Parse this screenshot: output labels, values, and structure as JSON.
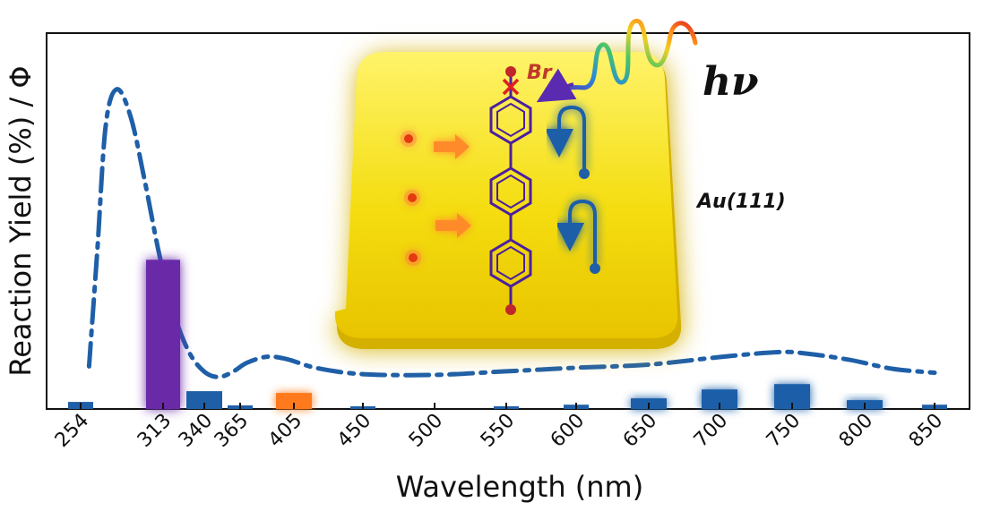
{
  "chart_data": {
    "type": "bar",
    "xlabel": "Wavelength (nm)",
    "ylabel": "Reaction Yield (%) / Φ",
    "x_ticks": [
      254,
      313,
      340,
      365,
      405,
      450,
      500,
      550,
      600,
      650,
      700,
      750,
      800,
      850
    ],
    "series": [
      {
        "values": [
          {
            "x": 254,
            "y": 2
          },
          {
            "x": 313,
            "y": 42,
            "color": "#6a2aa8",
            "glow": true
          },
          {
            "x": 340,
            "y": 5
          },
          {
            "x": 365,
            "y": 1
          },
          {
            "x": 405,
            "y": 4.5,
            "color": "#ff7a1a",
            "glow": true
          },
          {
            "x": 450,
            "y": 0.3
          },
          {
            "x": 550,
            "y": 0.3
          },
          {
            "x": 600,
            "y": 1.2
          },
          {
            "x": 650,
            "y": 3,
            "glow": true
          },
          {
            "x": 700,
            "y": 5.5,
            "glow": true
          },
          {
            "x": 750,
            "y": 7,
            "glow": true
          },
          {
            "x": 800,
            "y": 2.5,
            "glow": true
          },
          {
            "x": 850,
            "y": 1.2
          }
        ]
      },
      {
        "type": "line",
        "style": "dash-dot",
        "values": [
          {
            "x": 260,
            "y": 12
          },
          {
            "x": 266,
            "y": 45
          },
          {
            "x": 272,
            "y": 80
          },
          {
            "x": 280,
            "y": 90
          },
          {
            "x": 290,
            "y": 82
          },
          {
            "x": 300,
            "y": 64
          },
          {
            "x": 310,
            "y": 44
          },
          {
            "x": 320,
            "y": 27
          },
          {
            "x": 330,
            "y": 16
          },
          {
            "x": 340,
            "y": 10.5
          },
          {
            "x": 350,
            "y": 9
          },
          {
            "x": 360,
            "y": 10.5
          },
          {
            "x": 370,
            "y": 13
          },
          {
            "x": 385,
            "y": 14.7
          },
          {
            "x": 400,
            "y": 14
          },
          {
            "x": 420,
            "y": 11.5
          },
          {
            "x": 450,
            "y": 9.8
          },
          {
            "x": 500,
            "y": 9.6
          },
          {
            "x": 550,
            "y": 10.6
          },
          {
            "x": 600,
            "y": 11.6
          },
          {
            "x": 650,
            "y": 12.5
          },
          {
            "x": 700,
            "y": 14.6
          },
          {
            "x": 740,
            "y": 16
          },
          {
            "x": 760,
            "y": 15.6
          },
          {
            "x": 790,
            "y": 13.8
          },
          {
            "x": 820,
            "y": 11.3
          },
          {
            "x": 850,
            "y": 10.2
          }
        ]
      }
    ],
    "ylim": [
      0,
      100
    ],
    "grid": false,
    "colors": {
      "bar_default": "#1f5fa8",
      "curve": "#1f5fa8",
      "axis": "#111111"
    }
  },
  "inset": {
    "hv_label": "hν",
    "br_label": "Br",
    "surface_label": "Au(111)",
    "surface_color": "#f5e11c",
    "molecule_color": "#4b1fa0",
    "atom_color": "#e53a10",
    "arrow_color": "#ff8a2a"
  }
}
